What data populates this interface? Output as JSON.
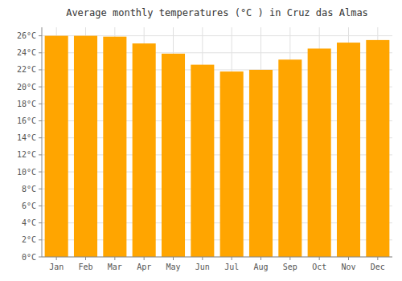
{
  "chart_data": {
    "type": "bar",
    "title": "Average monthly temperatures (°C ) in Cruz das Almas",
    "categories": [
      "Jan",
      "Feb",
      "Mar",
      "Apr",
      "May",
      "Jun",
      "Jul",
      "Aug",
      "Sep",
      "Oct",
      "Nov",
      "Dec"
    ],
    "values": [
      26.0,
      26.0,
      25.9,
      25.1,
      23.9,
      22.6,
      21.8,
      22.0,
      23.2,
      24.5,
      25.2,
      25.5
    ],
    "color": "#FFA500",
    "ylim": [
      0,
      27
    ],
    "yticks": [
      {
        "value": 0,
        "label": "0°C"
      },
      {
        "value": 2,
        "label": "2°C"
      },
      {
        "value": 4,
        "label": "4°C"
      },
      {
        "value": 6,
        "label": "6°C"
      },
      {
        "value": 8,
        "label": "8°C"
      },
      {
        "value": 10,
        "label": "10°C"
      },
      {
        "value": 12,
        "label": "12°C"
      },
      {
        "value": 14,
        "label": "14°C"
      },
      {
        "value": 16,
        "label": "16°C"
      },
      {
        "value": 18,
        "label": "18°C"
      },
      {
        "value": 20,
        "label": "20°C"
      },
      {
        "value": 22,
        "label": "22°C"
      },
      {
        "value": 24,
        "label": "24°C"
      },
      {
        "value": 26,
        "label": "26°C"
      }
    ],
    "grid": true
  }
}
